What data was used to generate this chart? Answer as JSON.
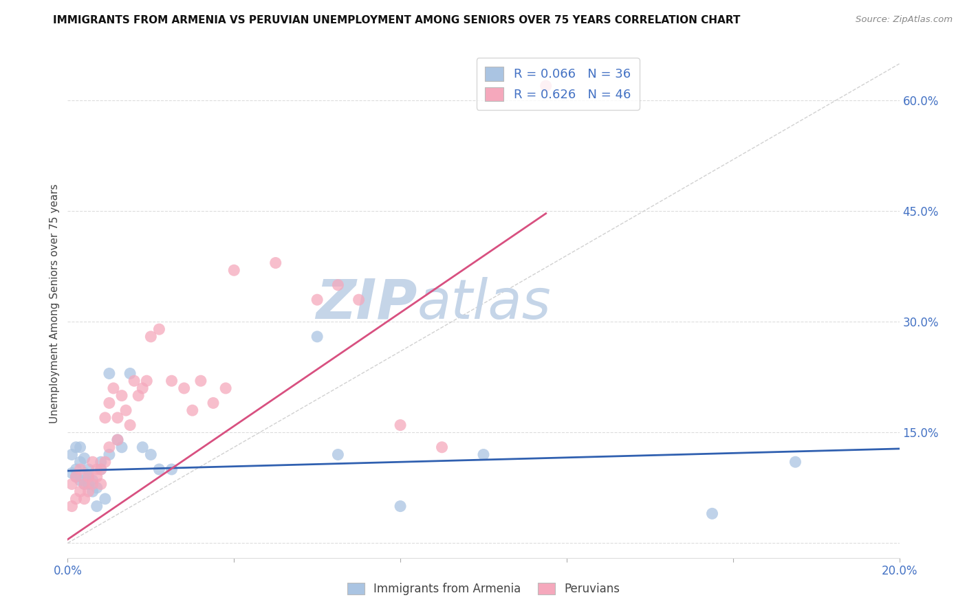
{
  "title": "IMMIGRANTS FROM ARMENIA VS PERUVIAN UNEMPLOYMENT AMONG SENIORS OVER 75 YEARS CORRELATION CHART",
  "source": "Source: ZipAtlas.com",
  "ylabel": "Unemployment Among Seniors over 75 years",
  "xlim": [
    0.0,
    0.2
  ],
  "ylim": [
    -0.02,
    0.67
  ],
  "xtick_pos": [
    0.0,
    0.04,
    0.08,
    0.12,
    0.16,
    0.2
  ],
  "xtick_labels": [
    "0.0%",
    "",
    "",
    "",
    "",
    "20.0%"
  ],
  "ytick_positions_right": [
    0.0,
    0.15,
    0.3,
    0.45,
    0.6
  ],
  "ytick_labels_right": [
    "",
    "15.0%",
    "30.0%",
    "45.0%",
    "60.0%"
  ],
  "blue_R": 0.066,
  "blue_N": 36,
  "pink_R": 0.626,
  "pink_N": 46,
  "blue_color": "#aac4e2",
  "pink_color": "#f5a8bc",
  "blue_line_color": "#3060b0",
  "pink_line_color": "#d85080",
  "watermark": "ZIPatlas",
  "watermark_color": "#ccd8e8",
  "blue_line_x": [
    0.0,
    0.2
  ],
  "blue_line_y": [
    0.098,
    0.128
  ],
  "pink_line_x": [
    0.0,
    0.115
  ],
  "pink_line_y": [
    0.005,
    0.447
  ],
  "diag_line_x": [
    0.0,
    0.2
  ],
  "diag_line_y": [
    0.0,
    0.65
  ],
  "blue_scatter_x": [
    0.001,
    0.001,
    0.002,
    0.002,
    0.002,
    0.003,
    0.003,
    0.003,
    0.004,
    0.004,
    0.004,
    0.005,
    0.005,
    0.005,
    0.006,
    0.006,
    0.007,
    0.007,
    0.008,
    0.008,
    0.009,
    0.01,
    0.01,
    0.012,
    0.013,
    0.015,
    0.018,
    0.02,
    0.022,
    0.025,
    0.06,
    0.065,
    0.08,
    0.1,
    0.155,
    0.175
  ],
  "blue_scatter_y": [
    0.095,
    0.12,
    0.1,
    0.13,
    0.09,
    0.11,
    0.085,
    0.13,
    0.08,
    0.115,
    0.095,
    0.1,
    0.09,
    0.08,
    0.085,
    0.07,
    0.075,
    0.05,
    0.1,
    0.11,
    0.06,
    0.23,
    0.12,
    0.14,
    0.13,
    0.23,
    0.13,
    0.12,
    0.1,
    0.1,
    0.28,
    0.12,
    0.05,
    0.12,
    0.04,
    0.11
  ],
  "pink_scatter_x": [
    0.001,
    0.001,
    0.002,
    0.002,
    0.003,
    0.003,
    0.004,
    0.004,
    0.005,
    0.005,
    0.006,
    0.006,
    0.007,
    0.007,
    0.008,
    0.008,
    0.009,
    0.009,
    0.01,
    0.01,
    0.011,
    0.012,
    0.012,
    0.013,
    0.014,
    0.015,
    0.016,
    0.017,
    0.018,
    0.019,
    0.02,
    0.022,
    0.025,
    0.028,
    0.03,
    0.032,
    0.035,
    0.038,
    0.04,
    0.05,
    0.06,
    0.065,
    0.07,
    0.08,
    0.09,
    0.115
  ],
  "pink_scatter_y": [
    0.05,
    0.08,
    0.06,
    0.09,
    0.07,
    0.1,
    0.08,
    0.06,
    0.09,
    0.07,
    0.11,
    0.08,
    0.1,
    0.09,
    0.1,
    0.08,
    0.17,
    0.11,
    0.13,
    0.19,
    0.21,
    0.17,
    0.14,
    0.2,
    0.18,
    0.16,
    0.22,
    0.2,
    0.21,
    0.22,
    0.28,
    0.29,
    0.22,
    0.21,
    0.18,
    0.22,
    0.19,
    0.21,
    0.37,
    0.38,
    0.33,
    0.35,
    0.33,
    0.16,
    0.13,
    0.62
  ]
}
